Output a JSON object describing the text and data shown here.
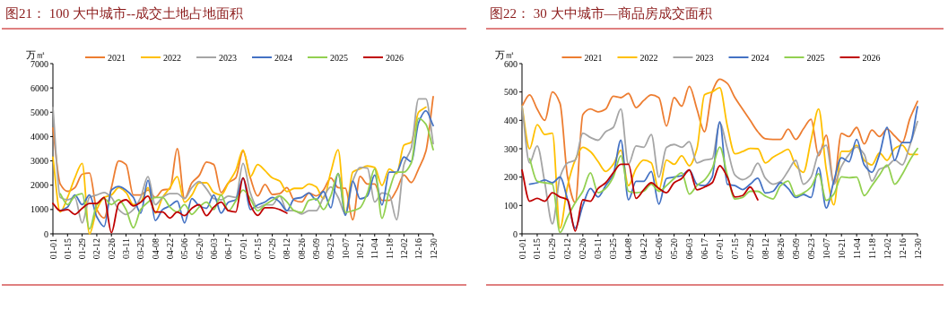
{
  "chart_data": [
    {
      "type": "line",
      "title": "图21：  100 大中城市--成交土地占地面积",
      "ylabel": "万㎡",
      "legend": "top",
      "grid": false,
      "categories": [
        "01-01",
        null,
        "01-15",
        null,
        "01-29",
        null,
        "02-12",
        null,
        "02-26",
        null,
        "03-11",
        null,
        "03-25",
        null,
        "04-08",
        null,
        "04-22",
        null,
        "05-06",
        null,
        "05-20",
        null,
        "06-03",
        null,
        "06-17",
        null,
        "07-01",
        null,
        "07-15",
        null,
        "07-29",
        null,
        "08-12",
        null,
        "08-26",
        null,
        "09-09",
        null,
        "09-23",
        null,
        "10-07",
        null,
        "10-21",
        null,
        "11-04",
        null,
        "11-18",
        null,
        "12-02",
        null,
        "12-16",
        null,
        "12-30"
      ],
      "ylim": [
        0,
        7000
      ],
      "yticks": [
        0,
        1000,
        2000,
        3000,
        4000,
        5000,
        6000,
        7000
      ],
      "series": [
        {
          "name": "2021",
          "color": "#ed7d31",
          "values": [
            4350,
            2050,
            1750,
            1900,
            2450,
            2500,
            1000,
            650,
            1900,
            3000,
            2850,
            1600,
            1600,
            1800,
            1500,
            1800,
            1850,
            3500,
            1450,
            2100,
            2400,
            2950,
            2850,
            1700,
            2100,
            2300,
            3400,
            2300,
            1560,
            2030,
            1620,
            1650,
            1900,
            1380,
            1310,
            1680,
            1560,
            1800,
            2300,
            1900,
            1870,
            580,
            2360,
            2050,
            2050,
            1380,
            1380,
            1800,
            2420,
            2110,
            2670,
            3400,
            5640
          ]
        },
        {
          "name": "2022",
          "color": "#ffc000",
          "values": [
            3150,
            900,
            1500,
            2300,
            2900,
            0,
            1000,
            1500,
            1600,
            1900,
            1700,
            1200,
            1300,
            1900,
            850,
            1500,
            1900,
            2350,
            1300,
            1600,
            2100,
            2100,
            1700,
            1600,
            2100,
            2600,
            3450,
            2360,
            2850,
            2600,
            2300,
            2170,
            1740,
            1870,
            1870,
            2050,
            1930,
            1440,
            2540,
            3460,
            820,
            2540,
            2670,
            2790,
            2730,
            1990,
            2670,
            2480,
            3650,
            3770,
            5000,
            5210,
            null
          ]
        },
        {
          "name": "2023",
          "color": "#a5a5a5",
          "values": [
            5200,
            1500,
            1400,
            1500,
            450,
            1500,
            1600,
            1700,
            1500,
            1000,
            800,
            1000,
            1500,
            2350,
            1200,
            1500,
            1650,
            1650,
            1450,
            1900,
            2150,
            1850,
            1450,
            1400,
            1550,
            1500,
            2900,
            1680,
            1070,
            1190,
            1190,
            1560,
            950,
            950,
            820,
            950,
            950,
            1500,
            1930,
            1500,
            820,
            2170,
            2730,
            2700,
            1310,
            1680,
            1600,
            580,
            2850,
            3530,
            5550,
            5550,
            3710
          ]
        },
        {
          "name": "2024",
          "color": "#4472c4",
          "values": [
            null,
            950,
            1100,
            1600,
            1200,
            1600,
            700,
            300,
            1800,
            1950,
            1800,
            1500,
            850,
            2200,
            550,
            1000,
            1150,
            1350,
            450,
            1450,
            1150,
            1050,
            1600,
            850,
            1300,
            1400,
            2300,
            1000,
            1190,
            1310,
            1500,
            1310,
            950,
            1440,
            1500,
            1680,
            1400,
            1740,
            1070,
            2480,
            760,
            2170,
            1440,
            1560,
            2420,
            1190,
            2540,
            2540,
            3160,
            2970,
            4570,
            5060,
            4450
          ]
        },
        {
          "name": "2025",
          "color": "#92d050",
          "values": [
            null,
            1650,
            1200,
            1550,
            1650,
            200,
            1200,
            1450,
            1200,
            1400,
            1000,
            250,
            1000,
            1300,
            1500,
            1500,
            1100,
            900,
            1200,
            800,
            1100,
            1300,
            1000,
            1600,
            950,
            1350,
            1800,
            1440,
            950,
            1190,
            1380,
            1560,
            1310,
            950,
            880,
            1380,
            1440,
            1000,
            1560,
            2480,
            880,
            950,
            1070,
            1680,
            2670,
            640,
            1800,
            2540,
            2540,
            2910,
            4750,
            4510,
            3460
          ]
        },
        {
          "name": "2026",
          "color": "#c00000",
          "values": [
            1250,
            950,
            1000,
            800,
            1050,
            1250,
            1250,
            1500,
            50,
            1250,
            1400,
            1150,
            1300,
            1550,
            900,
            900,
            650,
            900,
            750,
            1050,
            1200,
            750,
            1100,
            1300,
            950,
            900,
            2300,
            1190,
            760,
            1070,
            1070,
            1000,
            850,
            null,
            null,
            null,
            null,
            null,
            null,
            null,
            null,
            null,
            null,
            null,
            null,
            null,
            null,
            null,
            null,
            null,
            null,
            null,
            null
          ]
        }
      ]
    },
    {
      "type": "line",
      "title": "图22：  30 大中城市—商品房成交面积",
      "ylabel": "万㎡",
      "legend": "top",
      "grid": false,
      "categories": [
        "01-01",
        null,
        "01-15",
        null,
        "01-29",
        null,
        "02-12",
        null,
        "02-26",
        null,
        "03-11",
        null,
        "03-25",
        null,
        "04-08",
        null,
        "04-22",
        null,
        "05-06",
        null,
        "05-20",
        null,
        "06-03",
        null,
        "06-17",
        null,
        "07-01",
        null,
        "07-15",
        null,
        "07-29",
        null,
        "08-12",
        null,
        "08-26",
        null,
        "09-09",
        null,
        "09-23",
        null,
        "10-07",
        null,
        "10-21",
        null,
        "11-04",
        null,
        "11-18",
        null,
        "12-02",
        null,
        "12-16",
        null,
        "12-30"
      ],
      "ylim": [
        0,
        600
      ],
      "yticks": [
        0,
        100,
        200,
        300,
        400,
        500,
        600
      ],
      "series": [
        {
          "name": "2021",
          "color": "#ed7d31",
          "values": [
            450,
            490,
            440,
            400,
            500,
            460,
            200,
            110,
            420,
            440,
            430,
            440,
            485,
            480,
            495,
            445,
            470,
            490,
            480,
            380,
            480,
            450,
            520,
            440,
            360,
            500,
            545,
            530,
            480,
            440,
            400,
            360,
            335,
            333,
            333,
            369,
            333,
            370,
            404,
            275,
            348,
            180,
            354,
            343,
            375,
            317,
            366,
            343,
            369,
            345,
            322,
            406,
            467
          ]
        },
        {
          "name": "2022",
          "color": "#ffc000",
          "values": [
            450,
            300,
            385,
            350,
            355,
            20,
            170,
            260,
            305,
            290,
            255,
            220,
            245,
            295,
            170,
            230,
            260,
            250,
            155,
            260,
            245,
            275,
            240,
            300,
            490,
            500,
            515,
            380,
            282,
            290,
            301,
            300,
            250,
            270,
            285,
            298,
            240,
            217,
            330,
            440,
            228,
            102,
            291,
            291,
            312,
            259,
            243,
            285,
            259,
            301,
            312,
            280,
            280
          ]
        },
        {
          "name": "2023",
          "color": "#a5a5a5",
          "values": [
            450,
            250,
            310,
            180,
            35,
            200,
            250,
            260,
            355,
            340,
            330,
            360,
            375,
            440,
            245,
            310,
            305,
            350,
            200,
            305,
            315,
            305,
            325,
            250,
            260,
            265,
            390,
            300,
            207,
            191,
            205,
            249,
            196,
            175,
            185,
            222,
            259,
            175,
            200,
            285,
            312,
            175,
            238,
            280,
            306,
            280,
            186,
            228,
            238,
            260,
            243,
            312,
            396
          ]
        },
        {
          "name": "2024",
          "color": "#4472c4",
          "values": [
            null,
            175,
            180,
            190,
            180,
            200,
            120,
            20,
            100,
            160,
            130,
            170,
            210,
            330,
            120,
            185,
            185,
            220,
            105,
            195,
            200,
            205,
            225,
            175,
            170,
            200,
            395,
            175,
            170,
            156,
            175,
            196,
            144,
            150,
            180,
            160,
            128,
            139,
            128,
            233,
            91,
            186,
            268,
            254,
            333,
            243,
            217,
            280,
            375,
            259,
            322,
            322,
            448
          ]
        },
        {
          "name": "2025",
          "color": "#92d050",
          "values": [
            null,
            265,
            185,
            180,
            175,
            5,
            60,
            110,
            150,
            215,
            145,
            160,
            200,
            275,
            150,
            145,
            150,
            175,
            150,
            170,
            195,
            215,
            140,
            170,
            190,
            230,
            306,
            207,
            123,
            128,
            150,
            150,
            133,
            123,
            170,
            186,
            133,
            144,
            165,
            212,
            118,
            140,
            201,
            198,
            200,
            135,
            170,
            207,
            243,
            175,
            210,
            260,
            301
          ]
        },
        {
          "name": "2026",
          "color": "#c00000",
          "values": [
            225,
            115,
            125,
            115,
            145,
            130,
            120,
            10,
            120,
            115,
            160,
            180,
            215,
            245,
            245,
            125,
            155,
            180,
            160,
            145,
            180,
            195,
            225,
            155,
            165,
            180,
            240,
            200,
            130,
            135,
            165,
            120,
            null,
            null,
            null,
            null,
            null,
            null,
            null,
            null,
            null,
            null,
            null,
            null,
            null,
            null,
            null,
            null,
            null,
            null,
            null,
            null,
            null
          ]
        }
      ]
    }
  ]
}
